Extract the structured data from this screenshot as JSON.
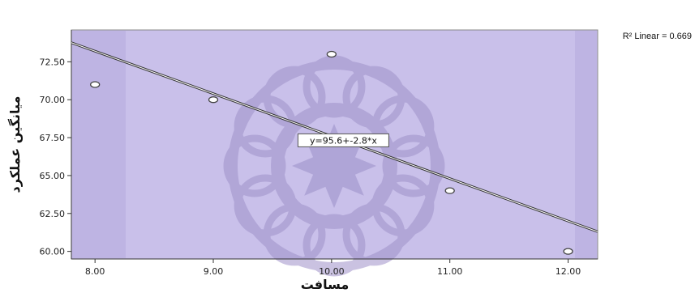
{
  "chart_data": {
    "type": "scatter",
    "title": "",
    "xlabel": "مسافت",
    "ylabel": "میانگین عملکرد",
    "xlim": [
      7.8,
      12.25
    ],
    "ylim": [
      59.5,
      74.6
    ],
    "x_ticks": [
      "8.00",
      "9.00",
      "10.00",
      "11.00",
      "12.00"
    ],
    "x_tick_values": [
      8,
      9,
      10,
      11,
      12
    ],
    "y_ticks": [
      "60.00",
      "62.50",
      "65.00",
      "67.50",
      "70.00",
      "72.50"
    ],
    "y_tick_values": [
      60,
      62.5,
      65,
      67.5,
      70,
      72.5
    ],
    "points": [
      {
        "x": 8,
        "y": 71
      },
      {
        "x": 9,
        "y": 70
      },
      {
        "x": 10,
        "y": 73
      },
      {
        "x": 11,
        "y": 64
      },
      {
        "x": 12,
        "y": 60
      }
    ],
    "fit": {
      "intercept": 95.6,
      "slope": -2.8,
      "equation_label": "y=95.6+-2.8*x",
      "r2_label": "R² Linear = 0.669"
    },
    "grid": false,
    "colors": {
      "plot_background": "#c9c0ea",
      "plot_band": "#beb4e3",
      "watermark": "#9f92c9",
      "fit_line": "#333333",
      "marker_fill": "#ffffff",
      "marker_stroke": "#444444"
    }
  }
}
